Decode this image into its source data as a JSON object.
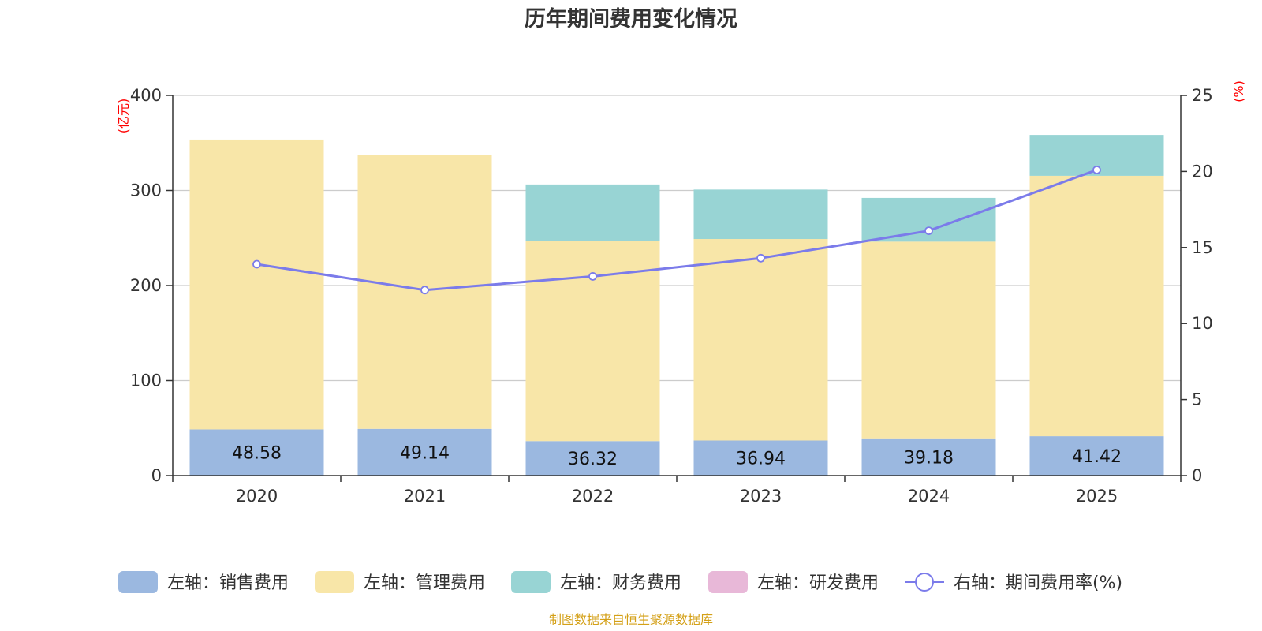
{
  "chart_data": {
    "type": "bar",
    "title": "历年期间费用变化情况",
    "categories": [
      "2020",
      "2021",
      "2022",
      "2023",
      "2024",
      "2025"
    ],
    "series": [
      {
        "name": "左轴：销售费用",
        "axis": "left",
        "kind": "stacked-bar",
        "color": "#9bb8e0",
        "values": [
          48.58,
          49.14,
          36.32,
          36.94,
          39.18,
          41.42
        ],
        "labels": [
          "48.58",
          "49.14",
          "36.32",
          "36.94",
          "39.18",
          "41.42"
        ]
      },
      {
        "name": "左轴：管理费用",
        "axis": "left",
        "kind": "stacked-bar",
        "color": "#f8e6a8",
        "values": [
          305,
          288,
          211,
          212,
          207,
          274
        ]
      },
      {
        "name": "左轴：财务费用",
        "axis": "left",
        "kind": "stacked-bar",
        "color": "#98d4d4",
        "values": [
          0,
          0,
          59,
          52,
          46,
          43
        ]
      },
      {
        "name": "左轴：研发费用",
        "axis": "left",
        "kind": "stacked-bar",
        "color": "#e8b8d8",
        "values": [
          0,
          0,
          0,
          0,
          0,
          0
        ]
      },
      {
        "name": "右轴：期间费用率(%)",
        "axis": "right",
        "kind": "line",
        "color": "#7b7bea",
        "values": [
          13.9,
          12.2,
          13.1,
          14.3,
          16.1,
          20.1
        ]
      }
    ],
    "left_axis": {
      "unit": "(亿元)",
      "ylim": [
        0,
        400
      ],
      "ticks": [
        "0",
        "100",
        "200",
        "300",
        "400"
      ]
    },
    "right_axis": {
      "unit": "(%)",
      "ylim": [
        0,
        25
      ],
      "ticks": [
        "0",
        "5",
        "10",
        "15",
        "20",
        "25"
      ]
    },
    "grid": true,
    "legend_position": "bottom"
  },
  "source_note": "制图数据来自恒生聚源数据库"
}
